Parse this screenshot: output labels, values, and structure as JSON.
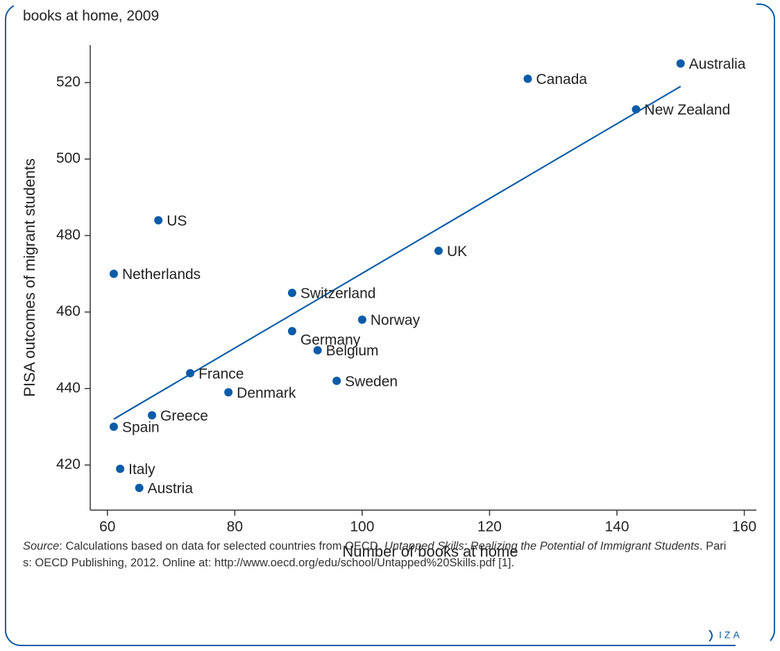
{
  "chart_data": {
    "type": "scatter",
    "title": "books at home, 2009",
    "x_label": "Number of books at home",
    "y_label": "PISA outcomes of migrant students",
    "points": {
      "names": [
        "Australia",
        "Canada",
        "New Zealand",
        "US",
        "UK",
        "Netherlands",
        "Switzerland",
        "Norway",
        "Germany",
        "Belgium",
        "France",
        "Sweden",
        "Denmark",
        "Greece",
        "Spain",
        "Italy",
        "Austria"
      ],
      "x": [
        150,
        126,
        143,
        68,
        112,
        61,
        89,
        100,
        89,
        93,
        73,
        96,
        79,
        67,
        61,
        62,
        65
      ],
      "y": [
        525,
        521,
        513,
        484,
        476,
        470,
        465,
        458,
        455,
        450,
        444,
        442,
        439,
        433,
        430,
        419,
        414
      ]
    },
    "color": "#0a5ca8",
    "trendline": {
      "x": [
        61,
        150
      ],
      "y": [
        432,
        519
      ]
    },
    "xlim": [
      57.3,
      161.9
    ],
    "xticks": [
      60,
      80,
      100,
      120,
      140,
      160
    ],
    "ylim": [
      408.2,
      529.8
    ],
    "yticks": [
      420,
      440,
      460,
      480,
      500,
      520
    ]
  },
  "source": {
    "label": "Source",
    "text": ": Calculations based on data for selected countries from OECD. ",
    "italic": "Untapped Skills: Realizing the Potential of Immigrant Students",
    "rest": ". Paris: OECD Publishing, 2012. Online at: http://www.oecd.org/edu/school/Untapped%20Skills.pdf [1]."
  },
  "logo": "IZA"
}
